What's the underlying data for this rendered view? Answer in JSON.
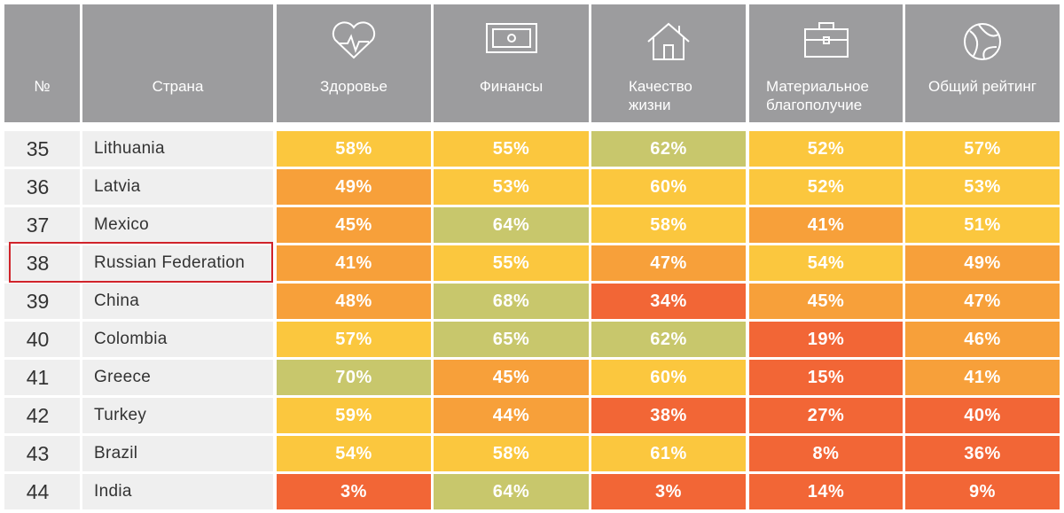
{
  "table": {
    "header": [
      "№",
      "Страна",
      "Здоровье",
      "Финансы",
      "Качество жизни",
      "Материальное благополучие",
      "Общий рейтинг"
    ],
    "palette": {
      "Y": "#fbc73e",
      "O": "#f7a03a",
      "G": "#c8c76c",
      "R": "#f26636"
    },
    "highlight_row": 3,
    "rows": [
      {
        "rank": "35",
        "country": "Lithuania",
        "cells": [
          "58%",
          "55%",
          "62%",
          "52%",
          "57%"
        ],
        "colors": [
          "Y",
          "Y",
          "G",
          "Y",
          "Y"
        ]
      },
      {
        "rank": "36",
        "country": "Latvia",
        "cells": [
          "49%",
          "53%",
          "60%",
          "52%",
          "53%"
        ],
        "colors": [
          "O",
          "Y",
          "Y",
          "Y",
          "Y"
        ]
      },
      {
        "rank": "37",
        "country": "Mexico",
        "cells": [
          "45%",
          "64%",
          "58%",
          "41%",
          "51%"
        ],
        "colors": [
          "O",
          "G",
          "Y",
          "O",
          "Y"
        ]
      },
      {
        "rank": "38",
        "country": "Russian Federation",
        "cells": [
          "41%",
          "55%",
          "47%",
          "54%",
          "49%"
        ],
        "colors": [
          "O",
          "Y",
          "O",
          "Y",
          "O"
        ]
      },
      {
        "rank": "39",
        "country": "China",
        "cells": [
          "48%",
          "68%",
          "34%",
          "45%",
          "47%"
        ],
        "colors": [
          "O",
          "G",
          "R",
          "O",
          "O"
        ]
      },
      {
        "rank": "40",
        "country": "Colombia",
        "cells": [
          "57%",
          "65%",
          "62%",
          "19%",
          "46%"
        ],
        "colors": [
          "Y",
          "G",
          "G",
          "R",
          "O"
        ]
      },
      {
        "rank": "41",
        "country": "Greece",
        "cells": [
          "70%",
          "45%",
          "60%",
          "15%",
          "41%"
        ],
        "colors": [
          "G",
          "O",
          "Y",
          "R",
          "O"
        ]
      },
      {
        "rank": "42",
        "country": "Turkey",
        "cells": [
          "59%",
          "44%",
          "38%",
          "27%",
          "40%"
        ],
        "colors": [
          "Y",
          "O",
          "R",
          "R",
          "R"
        ]
      },
      {
        "rank": "43",
        "country": "Brazil",
        "cells": [
          "54%",
          "58%",
          "61%",
          "8%",
          "36%"
        ],
        "colors": [
          "Y",
          "Y",
          "Y",
          "R",
          "R"
        ]
      },
      {
        "rank": "44",
        "country": "India",
        "cells": [
          "3%",
          "64%",
          "3%",
          "14%",
          "9%"
        ],
        "colors": [
          "R",
          "G",
          "R",
          "R",
          "R"
        ]
      }
    ]
  }
}
